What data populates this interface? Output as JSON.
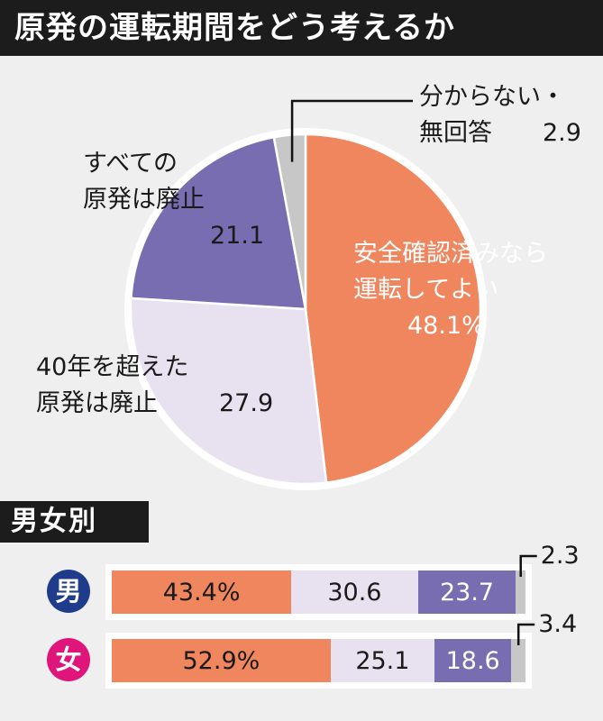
{
  "title": "原発の運転期間をどう考えるか",
  "colors": {
    "orange": "#f0865e",
    "lavender": "#e8e1ef",
    "purple": "#786db0",
    "gray": "#c7c7c7",
    "male": "#1f3b8c",
    "female": "#e0157b"
  },
  "chart_data": [
    {
      "type": "pie",
      "unit": "%",
      "slices": [
        {
          "label": "安全確認済みなら運転してよい",
          "label_lines": [
            "安全確認済みなら",
            "運転してよい"
          ],
          "value": 48.1,
          "value_text": "48.1%",
          "color": "#f0865e"
        },
        {
          "label": "40年を超えた原発は廃止",
          "label_lines": [
            "40年を超えた",
            "原発は廃止"
          ],
          "value": 27.9,
          "value_text": "27.9",
          "color": "#e8e1ef"
        },
        {
          "label": "すべての原発は廃止",
          "label_lines": [
            "すべての",
            "原発は廃止"
          ],
          "value": 21.1,
          "value_text": "21.1",
          "color": "#786db0"
        },
        {
          "label": "分からない・無回答",
          "label_lines": [
            "分からない・",
            "無回答"
          ],
          "value": 2.9,
          "value_text": "2.9",
          "color": "#c7c7c7"
        }
      ]
    },
    {
      "type": "bar",
      "title": "男女別",
      "orientation": "horizontal-stacked",
      "categories": [
        "男",
        "女"
      ],
      "series": [
        {
          "values": [
            43.4,
            52.9
          ],
          "value_texts": [
            "43.4%",
            "52.9%"
          ],
          "color": "#f0865e"
        },
        {
          "values": [
            30.6,
            25.1
          ],
          "value_texts": [
            "30.6",
            "25.1"
          ],
          "color": "#e8e1ef"
        },
        {
          "values": [
            23.7,
            18.6
          ],
          "value_texts": [
            "23.7",
            "18.6"
          ],
          "color": "#786db0"
        },
        {
          "values": [
            2.3,
            3.4
          ],
          "value_texts": [
            "2.3",
            "3.4"
          ],
          "color": "#c7c7c7"
        }
      ]
    }
  ]
}
